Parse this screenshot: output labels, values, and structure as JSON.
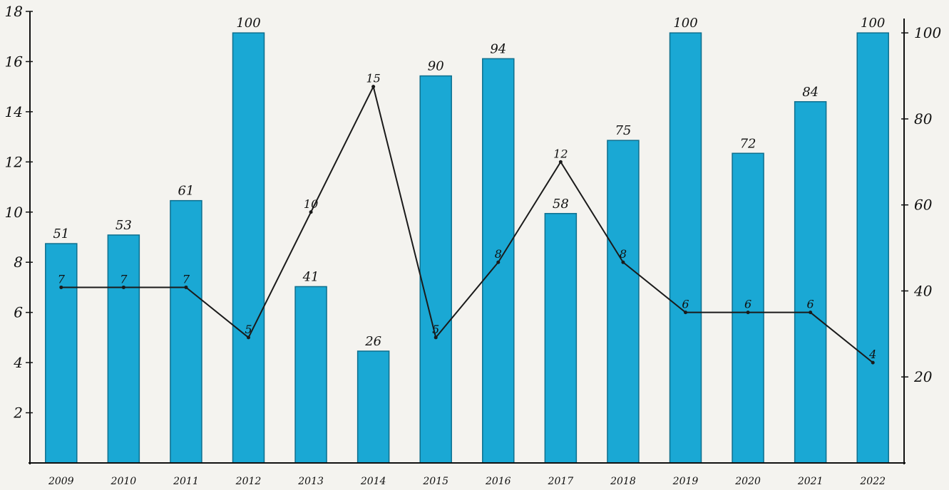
{
  "chart_data": {
    "type": "bar",
    "categories": [
      "2009",
      "2010",
      "2011",
      "2012",
      "2013",
      "2014",
      "2015",
      "2016",
      "2017",
      "2018",
      "2019",
      "2020",
      "2021",
      "2022"
    ],
    "series": [
      {
        "type": "bar",
        "axis": "right",
        "values": [
          51,
          53,
          61,
          100,
          41,
          26,
          90,
          94,
          58,
          75,
          100,
          72,
          84,
          100
        ],
        "labels": [
          "51",
          "53",
          "61",
          "100",
          "41",
          "26",
          "90",
          "94",
          "58",
          "75",
          "100",
          "72",
          "84",
          "100"
        ],
        "color": "#1aa8d4"
      },
      {
        "type": "line",
        "axis": "left",
        "values": [
          7,
          7,
          7,
          5,
          10,
          15,
          5,
          8,
          12,
          8,
          6,
          6,
          6,
          4
        ],
        "labels": [
          "7",
          "7",
          "7",
          "5",
          "10",
          "15",
          "5",
          "8",
          "12",
          "8",
          "6",
          "6",
          "6",
          "4"
        ],
        "color": "#1a1a1a"
      }
    ],
    "left_axis": {
      "ylim": [
        0,
        18
      ],
      "ticks": [
        "2",
        "4",
        "6",
        "8",
        "10",
        "12",
        "14",
        "16",
        "18"
      ]
    },
    "right_axis": {
      "ylim": [
        0,
        105
      ],
      "ticks": [
        "20",
        "40",
        "60",
        "80",
        "100"
      ]
    },
    "title": "",
    "xlabel": "",
    "ylabel": "",
    "grid": false,
    "legend": "none"
  }
}
